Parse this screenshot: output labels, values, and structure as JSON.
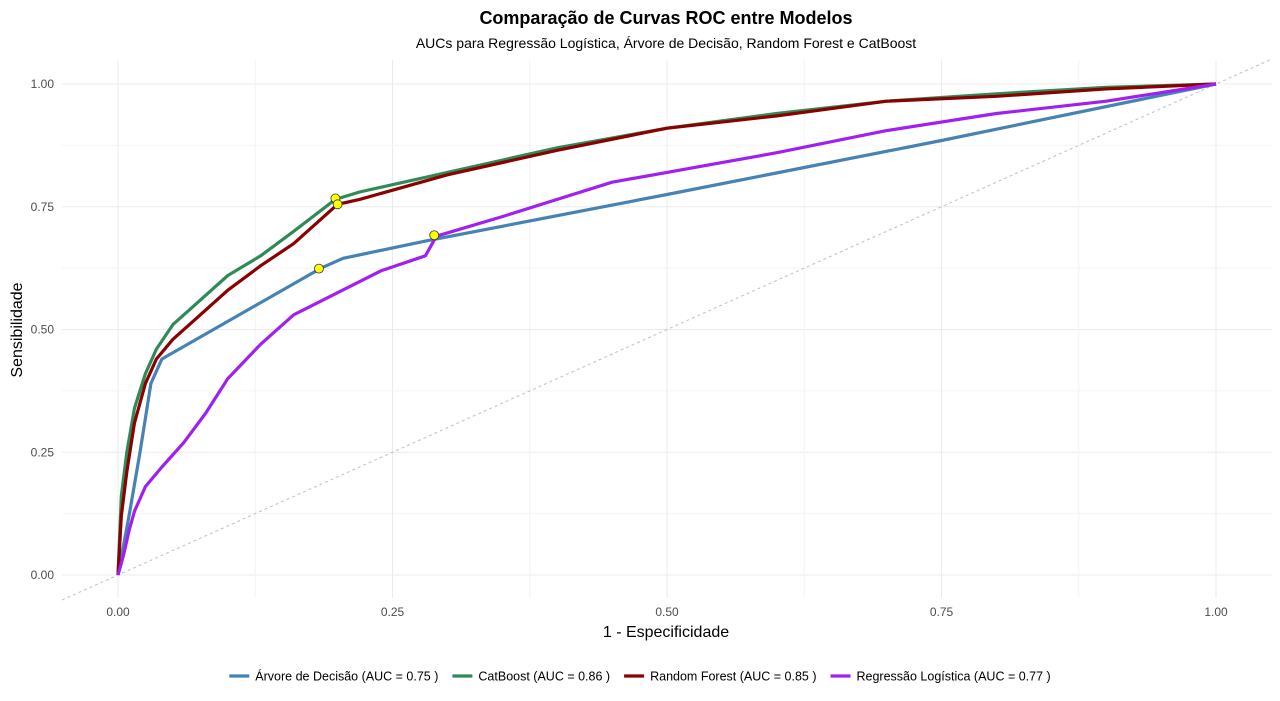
{
  "chart_data": {
    "type": "line",
    "title": "Comparação de Curvas ROC entre Modelos",
    "subtitle": "AUCs para Regressão Logística, Árvore de Decisão, Random Forest e CatBoost",
    "xlabel": "1 - Especificidade",
    "ylabel": "Sensibilidade",
    "xlim": [
      0,
      1
    ],
    "ylim": [
      0,
      1
    ],
    "xticks": [
      "0.00",
      "0.25",
      "0.50",
      "0.75",
      "1.00"
    ],
    "yticks": [
      "0.00",
      "0.25",
      "0.50",
      "0.75",
      "1.00"
    ],
    "grid": true,
    "legend_position": "bottom",
    "diagonal_reference": true,
    "series": [
      {
        "name": "Árvore de Decisão (AUC = 0.75 )",
        "color": "#4682b4",
        "auc": 0.75,
        "points": [
          [
            0,
            0
          ],
          [
            0.01,
            0.12
          ],
          [
            0.02,
            0.25
          ],
          [
            0.03,
            0.39
          ],
          [
            0.04,
            0.44
          ],
          [
            0.185,
            0.625
          ],
          [
            0.205,
            0.645
          ],
          [
            0.28,
            0.68
          ],
          [
            0.5,
            0.775
          ],
          [
            0.75,
            0.885
          ],
          [
            1,
            1
          ]
        ]
      },
      {
        "name": "CatBoost (AUC = 0.86 )",
        "color": "#2e8b57",
        "auc": 0.86,
        "points": [
          [
            0,
            0
          ],
          [
            0.003,
            0.16
          ],
          [
            0.008,
            0.25
          ],
          [
            0.015,
            0.34
          ],
          [
            0.025,
            0.41
          ],
          [
            0.035,
            0.46
          ],
          [
            0.05,
            0.51
          ],
          [
            0.07,
            0.55
          ],
          [
            0.1,
            0.61
          ],
          [
            0.13,
            0.65
          ],
          [
            0.16,
            0.7
          ],
          [
            0.198,
            0.765
          ],
          [
            0.22,
            0.78
          ],
          [
            0.3,
            0.82
          ],
          [
            0.4,
            0.87
          ],
          [
            0.5,
            0.91
          ],
          [
            0.6,
            0.94
          ],
          [
            0.7,
            0.965
          ],
          [
            0.8,
            0.98
          ],
          [
            0.9,
            0.993
          ],
          [
            1,
            1
          ]
        ]
      },
      {
        "name": "Random Forest (AUC = 0.85 )",
        "color": "#8b0000",
        "auc": 0.85,
        "points": [
          [
            0,
            0
          ],
          [
            0.003,
            0.12
          ],
          [
            0.008,
            0.21
          ],
          [
            0.015,
            0.31
          ],
          [
            0.025,
            0.39
          ],
          [
            0.035,
            0.44
          ],
          [
            0.05,
            0.48
          ],
          [
            0.07,
            0.52
          ],
          [
            0.1,
            0.58
          ],
          [
            0.13,
            0.63
          ],
          [
            0.16,
            0.675
          ],
          [
            0.2,
            0.755
          ],
          [
            0.22,
            0.765
          ],
          [
            0.3,
            0.815
          ],
          [
            0.4,
            0.865
          ],
          [
            0.5,
            0.91
          ],
          [
            0.6,
            0.935
          ],
          [
            0.7,
            0.965
          ],
          [
            0.8,
            0.975
          ],
          [
            0.9,
            0.99
          ],
          [
            1,
            1
          ]
        ]
      },
      {
        "name": "Regressão Logística (AUC = 0.77 )",
        "color": "#a020f0",
        "auc": 0.77,
        "points": [
          [
            0,
            0
          ],
          [
            0.005,
            0.04
          ],
          [
            0.01,
            0.09
          ],
          [
            0.015,
            0.13
          ],
          [
            0.025,
            0.18
          ],
          [
            0.04,
            0.22
          ],
          [
            0.06,
            0.27
          ],
          [
            0.08,
            0.33
          ],
          [
            0.1,
            0.4
          ],
          [
            0.13,
            0.47
          ],
          [
            0.16,
            0.53
          ],
          [
            0.2,
            0.575
          ],
          [
            0.24,
            0.62
          ],
          [
            0.28,
            0.65
          ],
          [
            0.29,
            0.69
          ],
          [
            0.35,
            0.73
          ],
          [
            0.4,
            0.765
          ],
          [
            0.45,
            0.8
          ],
          [
            0.5,
            0.82
          ],
          [
            0.55,
            0.84
          ],
          [
            0.6,
            0.86
          ],
          [
            0.7,
            0.905
          ],
          [
            0.8,
            0.94
          ],
          [
            0.9,
            0.965
          ],
          [
            1,
            1
          ]
        ]
      }
    ],
    "markers": [
      {
        "series": "Árvore de Decisão (AUC = 0.75 )",
        "x": 0.183,
        "y": 0.624,
        "color": "#ffff00"
      },
      {
        "series": "CatBoost (AUC = 0.86 )",
        "x": 0.198,
        "y": 0.767,
        "color": "#ffff00"
      },
      {
        "series": "Random Forest (AUC = 0.85 )",
        "x": 0.2,
        "y": 0.755,
        "color": "#ffff00"
      },
      {
        "series": "Regressão Logística (AUC = 0.77 )",
        "x": 0.288,
        "y": 0.692,
        "color": "#ffff00"
      }
    ]
  }
}
